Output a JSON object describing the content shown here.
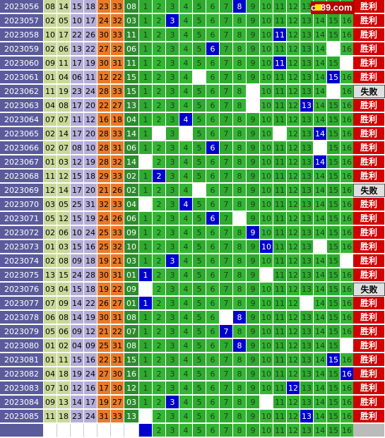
{
  "logo": {
    "text": "cz89.com"
  },
  "rows": [
    {
      "period": "2023056",
      "nums": [
        "08",
        "14",
        "15",
        "18",
        "23",
        "33"
      ],
      "sum": "08",
      "hit": 8,
      "blanks": [],
      "result": "胜利"
    },
    {
      "period": "2023057",
      "nums": [
        "02",
        "05",
        "10",
        "17",
        "24",
        "32"
      ],
      "sum": "03",
      "hit": 3,
      "blanks": [],
      "result": "胜利"
    },
    {
      "period": "2023058",
      "nums": [
        "10",
        "17",
        "22",
        "26",
        "30",
        "33"
      ],
      "sum": "11",
      "hit": 11,
      "blanks": [],
      "result": "胜利"
    },
    {
      "period": "2023059",
      "nums": [
        "02",
        "06",
        "13",
        "22",
        "27",
        "32"
      ],
      "sum": "06",
      "hit": 6,
      "blanks": [
        15
      ],
      "result": "胜利"
    },
    {
      "period": "2023060",
      "nums": [
        "09",
        "11",
        "17",
        "19",
        "30",
        "31"
      ],
      "sum": "11",
      "hit": 11,
      "blanks": [
        16
      ],
      "result": "胜利"
    },
    {
      "period": "2023061",
      "nums": [
        "01",
        "04",
        "06",
        "11",
        "12",
        "22"
      ],
      "sum": "15",
      "hit": 15,
      "blanks": [
        5
      ],
      "result": "胜利"
    },
    {
      "period": "2023062",
      "nums": [
        "11",
        "19",
        "23",
        "24",
        "28",
        "33"
      ],
      "sum": "15",
      "hit": null,
      "blanks": [
        9,
        15
      ],
      "result": "失败"
    },
    {
      "period": "2023063",
      "nums": [
        "04",
        "08",
        "17",
        "20",
        "22",
        "27"
      ],
      "sum": "13",
      "hit": 13,
      "blanks": [
        9
      ],
      "result": "胜利"
    },
    {
      "period": "2023064",
      "nums": [
        "07",
        "07",
        "11",
        "12",
        "16",
        "18"
      ],
      "sum": "04",
      "hit": 4,
      "blanks": [],
      "result": "胜利"
    },
    {
      "period": "2023065",
      "nums": [
        "02",
        "14",
        "17",
        "20",
        "28",
        "33"
      ],
      "sum": "14",
      "hit": 14,
      "blanks": [
        2,
        4,
        11
      ],
      "result": "胜利"
    },
    {
      "period": "2023066",
      "nums": [
        "02",
        "07",
        "08",
        "10",
        "28",
        "31"
      ],
      "sum": "06",
      "hit": 6,
      "blanks": [
        14
      ],
      "result": "胜利"
    },
    {
      "period": "2023067",
      "nums": [
        "01",
        "03",
        "12",
        "19",
        "28",
        "32"
      ],
      "sum": "14",
      "hit": 14,
      "blanks": [
        1
      ],
      "result": "胜利"
    },
    {
      "period": "2023068",
      "nums": [
        "11",
        "12",
        "15",
        "18",
        "29",
        "33"
      ],
      "sum": "02",
      "hit": 2,
      "blanks": [],
      "result": "胜利"
    },
    {
      "period": "2023069",
      "nums": [
        "12",
        "14",
        "17",
        "20",
        "21",
        "26"
      ],
      "sum": "02",
      "hit": null,
      "blanks": [
        5
      ],
      "result": "失败"
    },
    {
      "period": "2023070",
      "nums": [
        "03",
        "05",
        "25",
        "31",
        "32",
        "33"
      ],
      "sum": "04",
      "hit": 4,
      "blanks": [
        1
      ],
      "result": "胜利"
    },
    {
      "period": "2023071",
      "nums": [
        "05",
        "12",
        "15",
        "19",
        "24",
        "26"
      ],
      "sum": "06",
      "hit": 6,
      "blanks": [
        8
      ],
      "result": "胜利"
    },
    {
      "period": "2023072",
      "nums": [
        "02",
        "06",
        "10",
        "24",
        "25",
        "33"
      ],
      "sum": "09",
      "hit": 9,
      "blanks": [],
      "result": "胜利"
    },
    {
      "period": "2023073",
      "nums": [
        "01",
        "03",
        "15",
        "16",
        "25",
        "32"
      ],
      "sum": "10",
      "hit": 10,
      "blanks": [
        14
      ],
      "result": "胜利"
    },
    {
      "period": "2023074",
      "nums": [
        "02",
        "08",
        "09",
        "18",
        "19",
        "21"
      ],
      "sum": "03",
      "hit": 3,
      "blanks": [
        16
      ],
      "result": "胜利"
    },
    {
      "period": "2023075",
      "nums": [
        "13",
        "15",
        "24",
        "28",
        "30",
        "31"
      ],
      "sum": "01",
      "hit": 1,
      "blanks": [
        10
      ],
      "result": "胜利"
    },
    {
      "period": "2023076",
      "nums": [
        "03",
        "04",
        "15",
        "18",
        "19",
        "22"
      ],
      "sum": "09",
      "hit": null,
      "blanks": [
        1
      ],
      "result": "失败"
    },
    {
      "period": "2023077",
      "nums": [
        "07",
        "09",
        "14",
        "22",
        "26",
        "27"
      ],
      "sum": "01",
      "hit": 1,
      "blanks": [
        13
      ],
      "result": "胜利"
    },
    {
      "period": "2023078",
      "nums": [
        "06",
        "08",
        "14",
        "19",
        "30",
        "31"
      ],
      "sum": "08",
      "hit": 8,
      "blanks": [
        7
      ],
      "result": "胜利"
    },
    {
      "period": "2023079",
      "nums": [
        "05",
        "06",
        "09",
        "12",
        "21",
        "22"
      ],
      "sum": "07",
      "hit": 7,
      "blanks": [],
      "result": "胜利"
    },
    {
      "period": "2023080",
      "nums": [
        "01",
        "02",
        "04",
        "09",
        "25",
        "31"
      ],
      "sum": "08",
      "hit": 8,
      "blanks": [
        16
      ],
      "result": "胜利"
    },
    {
      "period": "2023081",
      "nums": [
        "01",
        "11",
        "15",
        "16",
        "22",
        "31"
      ],
      "sum": "15",
      "hit": 15,
      "blanks": [],
      "result": "胜利"
    },
    {
      "period": "2023082",
      "nums": [
        "04",
        "18",
        "19",
        "24",
        "27",
        "30"
      ],
      "sum": "16",
      "hit": 16,
      "blanks": [],
      "result": "胜利"
    },
    {
      "period": "2023083",
      "nums": [
        "07",
        "10",
        "12",
        "16",
        "17",
        "30"
      ],
      "sum": "12",
      "hit": 12,
      "blanks": [],
      "result": "胜利"
    },
    {
      "period": "2023084",
      "nums": [
        "09",
        "13",
        "14",
        "17",
        "19",
        "27"
      ],
      "sum": "03",
      "hit": 3,
      "blanks": [
        10
      ],
      "result": "胜利"
    },
    {
      "period": "2023085",
      "nums": [
        "11",
        "18",
        "23",
        "24",
        "31",
        "33"
      ],
      "sum": "13",
      "hit": 13,
      "blanks": [
        1
      ],
      "result": "胜利"
    }
  ],
  "footer": {
    "hit_col": 1,
    "blanks": []
  },
  "colors": {
    "win": "#d00000",
    "lose": "#e0e0e0",
    "hit": "#0000cc",
    "grid": "#2eaa2e"
  }
}
